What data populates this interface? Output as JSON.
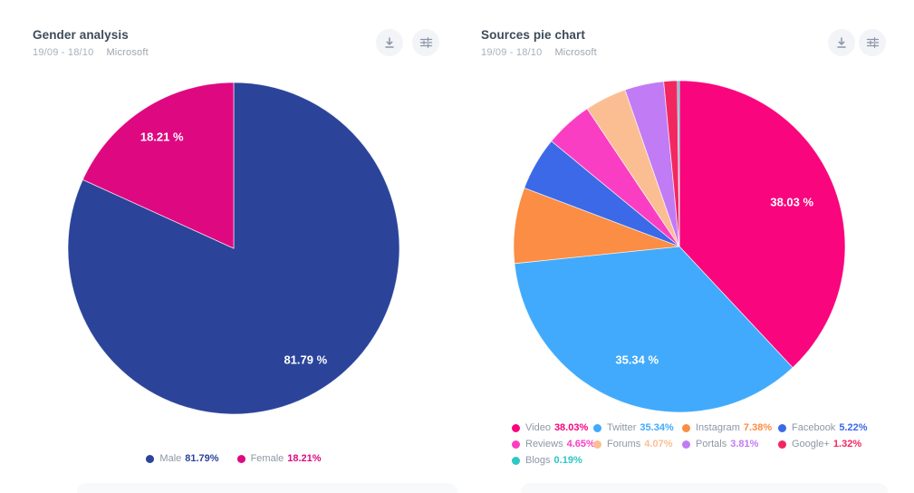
{
  "cards": [
    {
      "title": "Gender analysis",
      "date_range": "19/09 - 18/10",
      "brand": "Microsoft",
      "actions": [
        {
          "name": "download-button",
          "icon": "download-icon"
        },
        {
          "name": "settings-button",
          "icon": "sliders-icon"
        }
      ]
    },
    {
      "title": "Sources pie chart",
      "date_range": "19/09 - 18/10",
      "brand": "Microsoft",
      "actions": [
        {
          "name": "download-button",
          "icon": "download-icon"
        },
        {
          "name": "settings-button",
          "icon": "sliders-icon"
        }
      ]
    }
  ],
  "chart_data": [
    {
      "type": "pie",
      "title": "Gender analysis",
      "start_angle": "top",
      "direction": "clockwise",
      "legend_position": "bottom-center",
      "label_min_pct": 10,
      "label_distance": 0.8,
      "slice_label_suffix": " %",
      "series": [
        {
          "name": "Male",
          "value": 81.79,
          "color": "#2B449A"
        },
        {
          "name": "Female",
          "value": 18.21,
          "color": "#DE0981"
        }
      ]
    },
    {
      "type": "pie",
      "title": "Sources pie chart",
      "start_angle": "top",
      "direction": "clockwise",
      "legend_position": "bottom-left",
      "label_min_pct": 10,
      "label_distance": 0.73,
      "slice_label_suffix": " %",
      "series": [
        {
          "name": "Video",
          "value": 38.03,
          "color": "#F9057D"
        },
        {
          "name": "Twitter",
          "value": 35.34,
          "color": "#41AAFC"
        },
        {
          "name": "Instagram",
          "value": 7.38,
          "color": "#FB8D44"
        },
        {
          "name": "Facebook",
          "value": 5.22,
          "color": "#3C69E7"
        },
        {
          "name": "Reviews",
          "value": 4.65,
          "color": "#FA3EC3"
        },
        {
          "name": "Forums",
          "value": 4.07,
          "color": "#FBBE92"
        },
        {
          "name": "Portals",
          "value": 3.81,
          "color": "#C17BF5"
        },
        {
          "name": "Google+",
          "value": 1.32,
          "color": "#F3275F"
        },
        {
          "name": "Blogs",
          "value": 0.19,
          "color": "#2BC8C4"
        }
      ]
    }
  ]
}
